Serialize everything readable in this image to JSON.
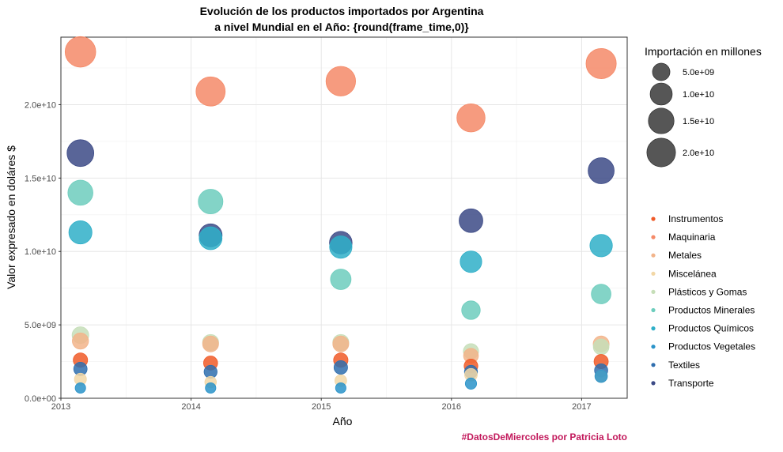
{
  "chart_data": {
    "type": "scatter",
    "title_line1": "Evolución de los productos importados por Argentina",
    "title_line2": "a nivel Mundial en el Año: {round(frame_time,0)}",
    "xlabel": "Año",
    "ylabel": "Valor expresado en doláres $",
    "caption": "#DatosDeMiercoles por Patricia Loto",
    "xlim": [
      2013,
      2017.35
    ],
    "ylim": [
      0,
      24600000000.0
    ],
    "x_ticks": [
      2013,
      2014,
      2015,
      2016,
      2017
    ],
    "x_tick_labels": [
      "2013",
      "2014",
      "2015",
      "2016",
      "2017"
    ],
    "y_ticks": [
      0,
      5000000000.0,
      10000000000.0,
      15000000000.0,
      20000000000.0
    ],
    "y_tick_labels": [
      "0.0e+00",
      "5.0e+09",
      "1.0e+10",
      "1.5e+10",
      "2.0e+10"
    ],
    "grid": true,
    "size_legend": {
      "title": "Importación en millones",
      "values": [
        5000000000.0,
        10000000000.0,
        15000000000.0,
        20000000000.0
      ],
      "labels": [
        "5.0e+09",
        "1.0e+10",
        "1.5e+10",
        "2.0e+10"
      ],
      "color": "#4d4d4d"
    },
    "color_legend_position": "right",
    "series": [
      {
        "name": "Instrumentos",
        "color": "#F05A28",
        "x": [
          2013.15,
          2014.15,
          2015.15,
          2016.15,
          2017.15
        ],
        "y": [
          2600000000.0,
          2400000000.0,
          2600000000.0,
          2200000000.0,
          2500000000.0
        ]
      },
      {
        "name": "Maquinaria",
        "color": "#F58A68",
        "x": [
          2013.15,
          2014.15,
          2015.15,
          2016.15,
          2017.15
        ],
        "y": [
          23600000000.0,
          20900000000.0,
          21600000000.0,
          19100000000.0,
          22800000000.0
        ]
      },
      {
        "name": "Metales",
        "color": "#F2B48A",
        "x": [
          2013.15,
          2014.15,
          2015.15,
          2016.15,
          2017.15
        ],
        "y": [
          3900000000.0,
          3700000000.0,
          3700000000.0,
          2900000000.0,
          3700000000.0
        ]
      },
      {
        "name": "Miscelánea",
        "color": "#F2D7A6",
        "x": [
          2013.15,
          2014.15,
          2015.15,
          2016.15,
          2017.15
        ],
        "y": [
          1300000000.0,
          1100000000.0,
          1200000000.0,
          1600000000.0,
          1500000000.0
        ]
      },
      {
        "name": "Plásticos y Gomas",
        "color": "#C6DEB8",
        "x": [
          2013.15,
          2014.15,
          2015.15,
          2016.15,
          2017.15
        ],
        "y": [
          4300000000.0,
          3800000000.0,
          3800000000.0,
          3200000000.0,
          3500000000.0
        ]
      },
      {
        "name": "Productos Minerales",
        "color": "#6DCDBD",
        "x": [
          2013.15,
          2014.15,
          2015.15,
          2016.15,
          2017.15
        ],
        "y": [
          14000000000.0,
          13400000000.0,
          8100000000.0,
          6000000000.0,
          7100000000.0
        ]
      },
      {
        "name": "Productos Químicos",
        "color": "#2FAFC8",
        "x": [
          2013.15,
          2014.15,
          2015.15,
          2016.15,
          2017.15
        ],
        "y": [
          11300000000.0,
          10900000000.0,
          10300000000.0,
          9300000000.0,
          10400000000.0
        ]
      },
      {
        "name": "Productos Vegetales",
        "color": "#2A93C9",
        "x": [
          2013.15,
          2014.15,
          2015.15,
          2016.15,
          2017.15
        ],
        "y": [
          700000000.0,
          700000000.0,
          700000000.0,
          1000000000.0,
          1500000000.0
        ]
      },
      {
        "name": "Textiles",
        "color": "#2F6EAE",
        "x": [
          2013.15,
          2014.15,
          2015.15,
          2016.15,
          2017.15
        ],
        "y": [
          2000000000.0,
          1800000000.0,
          2100000000.0,
          1800000000.0,
          1900000000.0
        ]
      },
      {
        "name": "Transporte",
        "color": "#3C4A86",
        "x": [
          2013.15,
          2014.15,
          2015.15,
          2016.15,
          2017.15
        ],
        "y": [
          16700000000.0,
          11100000000.0,
          10600000000.0,
          12100000000.0,
          15500000000.0
        ]
      }
    ]
  }
}
